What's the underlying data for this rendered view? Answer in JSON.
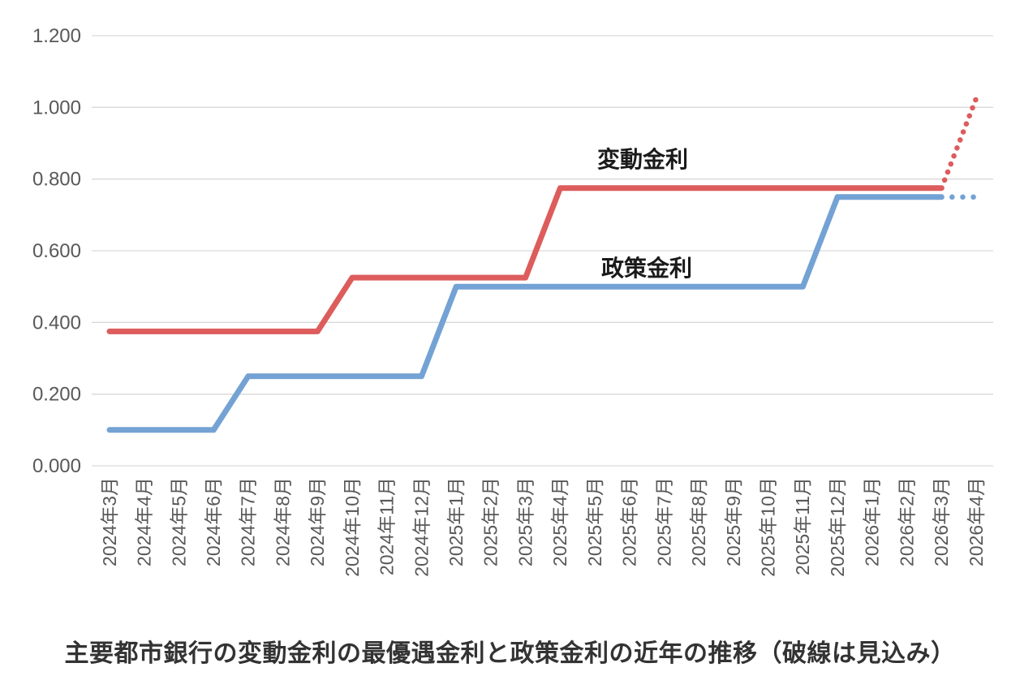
{
  "chart_data": {
    "type": "line",
    "title": "主要都市銀行の変動金利の最優遇金利と政策金利の近年の推移（破線は見込み）",
    "note_meaning": "破線は見込み",
    "x_categories": [
      "2024年3月",
      "2024年4月",
      "2024年5月",
      "2024年6月",
      "2024年7月",
      "2024年8月",
      "2024年9月",
      "2024年10月",
      "2024年11月",
      "2024年12月",
      "2025年1月",
      "2025年2月",
      "2025年3月",
      "2025年4月",
      "2025年5月",
      "2025年6月",
      "2025年7月",
      "2025年8月",
      "2025年9月",
      "2025年10月",
      "2025年11月",
      "2025年12月",
      "2026年1月",
      "2026年2月",
      "2026年3月",
      "2026年4月"
    ],
    "y_axis": {
      "min": 0.0,
      "max": 1.2,
      "step": 0.2,
      "tick_labels": [
        "1.200",
        "1.000",
        "0.800",
        "0.600",
        "0.400",
        "0.200",
        "0.000"
      ]
    },
    "grid": "horizontal",
    "legend_position": "inline-labels",
    "colors": {
      "grid": "#D9D9D9",
      "axis_text": "#595959",
      "series_label_text": "#1a1a1a",
      "title_text": "#333333"
    },
    "series": [
      {
        "name": "変動金利",
        "color": "#DD5C5C",
        "values": [
          0.375,
          0.375,
          0.375,
          0.375,
          0.375,
          0.375,
          0.375,
          0.525,
          0.525,
          0.525,
          0.525,
          0.525,
          0.525,
          0.775,
          0.775,
          0.775,
          0.775,
          0.775,
          0.775,
          0.775,
          0.775,
          0.775,
          0.775,
          0.775,
          0.775,
          1.025
        ],
        "solid_until_index": 24,
        "forecast_style": "dotted",
        "forecast_values": [
          0.775,
          1.025
        ]
      },
      {
        "name": "政策金利",
        "color": "#74A2D4",
        "values": [
          0.1,
          0.1,
          0.1,
          0.1,
          0.25,
          0.25,
          0.25,
          0.25,
          0.25,
          0.25,
          0.5,
          0.5,
          0.5,
          0.5,
          0.5,
          0.5,
          0.5,
          0.5,
          0.5,
          0.5,
          0.5,
          0.75,
          0.75,
          0.75,
          0.75,
          0.75
        ],
        "solid_until_index": 24,
        "forecast_style": "dotted",
        "forecast_values": [
          0.75,
          0.75
        ]
      }
    ]
  }
}
